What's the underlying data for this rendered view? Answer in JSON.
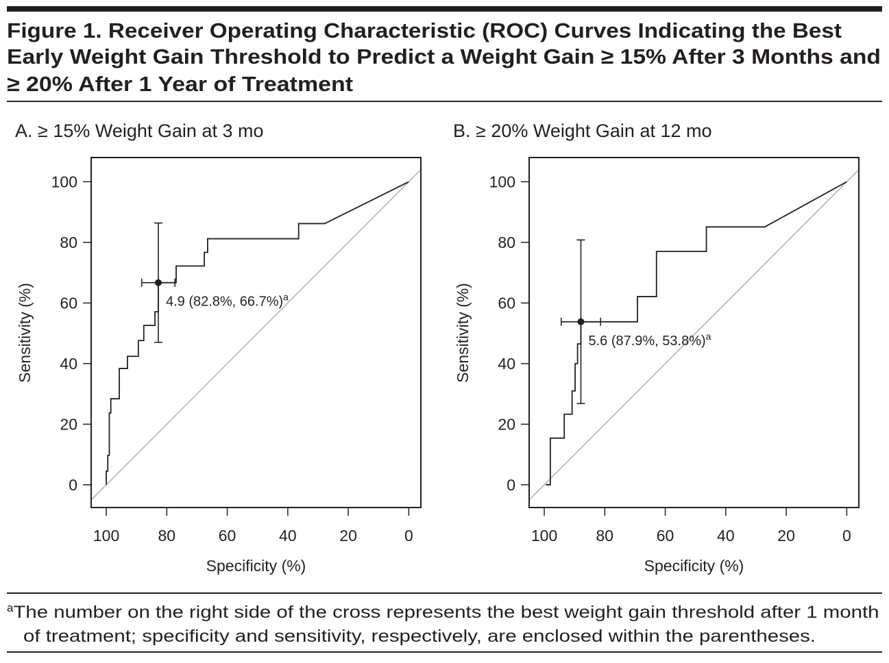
{
  "figure": {
    "title_lines": [
      "Figure 1. Receiver Operating Characteristic (ROC) Curves Indicating the Best",
      "Early Weight Gain Threshold to Predict a Weight Gain ≥ 15% After 3 Months and",
      "≥ 20% After 1 Year of Treatment"
    ],
    "footnote_marker": "a",
    "footnote_lines": [
      "The number on the right side of the cross represents the best weight gain threshold after 1 month",
      "of treatment; specificity and sensitivity, respectively, are enclosed within the parentheses."
    ]
  },
  "chart_data": [
    {
      "type": "line",
      "title": "A. ≥ 15% Weight Gain at 3 mo",
      "x_label": "Specificity (%)",
      "y_label": "Sensitivity (%)",
      "xlim": [
        105,
        -4
      ],
      "ylim": [
        -7.5,
        108
      ],
      "xticks": [
        100,
        80,
        60,
        40,
        20,
        0
      ],
      "yticks": [
        0,
        20,
        40,
        60,
        80,
        100
      ],
      "color": "#231f20",
      "reference_color": "#b5b5b5",
      "x": [
        100,
        100,
        99.5,
        99.5,
        99,
        99,
        98.5,
        98.5,
        95.7,
        95.7,
        93,
        93,
        89.4,
        89.4,
        87.6,
        87.6,
        83.9,
        83.9,
        82.8,
        82.8,
        76.9,
        76.9,
        67.6,
        67.6,
        66.5,
        66.5,
        36.4,
        36.4,
        27.8,
        0
      ],
      "y": [
        0,
        4.5,
        4.5,
        9.7,
        9.7,
        23.7,
        23.7,
        28.4,
        28.4,
        38.4,
        38.4,
        42.4,
        42.4,
        47.6,
        47.6,
        52.6,
        52.6,
        57.1,
        57.1,
        66.7,
        66.7,
        72.2,
        72.2,
        76.7,
        76.7,
        81.2,
        81.2,
        86.2,
        86.2,
        100
      ],
      "point": {
        "x": 82.8,
        "y": 66.7,
        "x_error": 5.5,
        "y_error": 19.7
      },
      "annotation": "4.9 (82.8%, 66.7%)",
      "annotation_superscript": "a"
    },
    {
      "type": "line",
      "title": "B. ≥ 20% Weight Gain at 12 mo",
      "x_label": "Specificity (%)",
      "y_label": "Sensitivity (%)",
      "xlim": [
        105,
        -4
      ],
      "ylim": [
        -7.5,
        108
      ],
      "xticks": [
        100,
        80,
        60,
        40,
        20,
        0
      ],
      "yticks": [
        0,
        20,
        40,
        60,
        80,
        100
      ],
      "color": "#231f20",
      "reference_color": "#b5b5b5",
      "x": [
        99.5,
        98,
        98,
        93.4,
        93.4,
        90.8,
        90.8,
        89.8,
        89.8,
        89,
        89,
        87.9,
        87.9,
        69.2,
        69.2,
        62.9,
        62.9,
        46.4,
        46.4,
        27.1,
        0
      ],
      "y": [
        0,
        0,
        15.4,
        15.4,
        23.3,
        23.3,
        31,
        31,
        40,
        40,
        46.5,
        46.5,
        53.8,
        53.8,
        62.1,
        62.1,
        77,
        77,
        85.1,
        85.1,
        100
      ],
      "point": {
        "x": 87.9,
        "y": 53.8,
        "x_error": 6.5,
        "y_error": 27
      },
      "annotation": "5.6 (87.9%, 53.8%)",
      "annotation_superscript": "a"
    }
  ]
}
